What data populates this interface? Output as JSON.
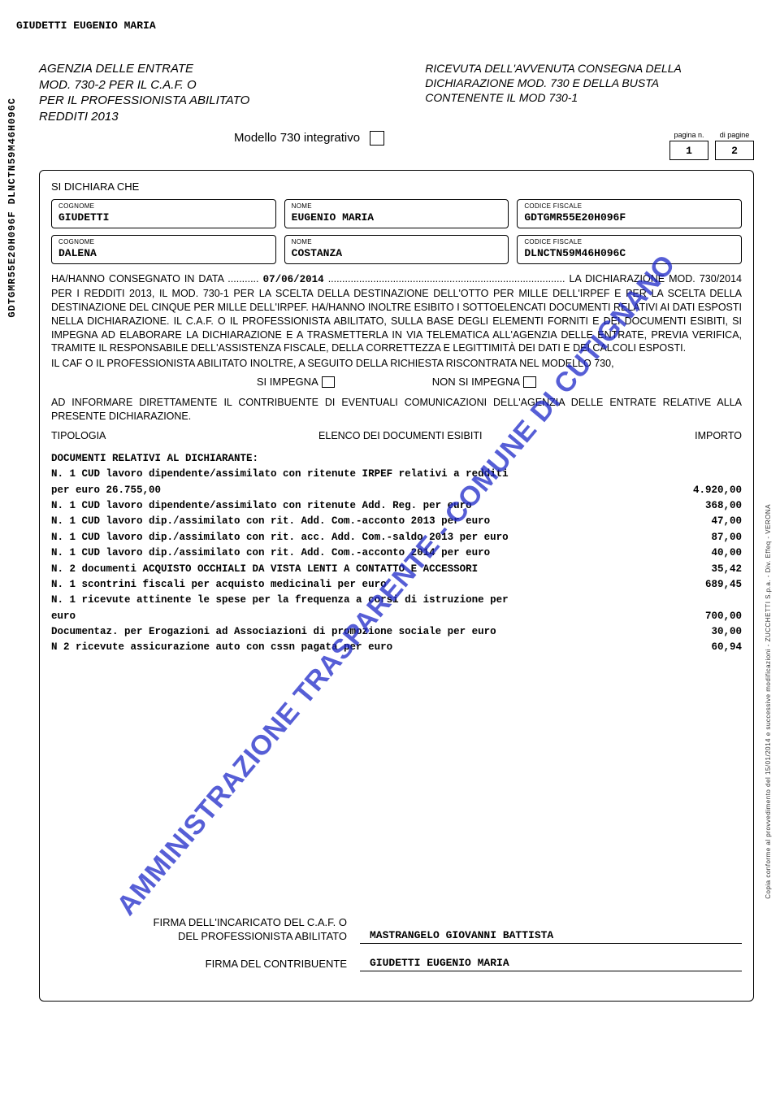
{
  "top_name": "GIUDETTI EUGENIO MARIA",
  "vertical_code": "GDTGMR55E20H096F  DLNCTN59M46H096C",
  "header_left_l1": "AGENZIA DELLE ENTRATE",
  "header_left_l2": "MOD. 730-2 PER IL C.A.F. O",
  "header_left_l3": "PER IL PROFESSIONISTA ABILITATO",
  "header_left_l4": "REDDITI 2013",
  "header_right_l1": "RICEVUTA DELL'AVVENUTA CONSEGNA DELLA",
  "header_right_l2": "DICHIARAZIONE MOD. 730 E DELLA BUSTA",
  "header_right_l3": "CONTENENTE IL MOD 730-1",
  "modello_label": "Modello 730 integrativo",
  "pagina_label": "pagina n.",
  "dipagine_label": "di pagine",
  "pagina_n": "1",
  "di_pagine": "2",
  "si_dichiara": "SI DICHIARA CHE",
  "label_cognome": "COGNOME",
  "label_nome": "NOME",
  "label_cf": "CODICE FISCALE",
  "p1": {
    "cognome": "GIUDETTI",
    "nome": "EUGENIO MARIA",
    "cf": "GDTGMR55E20H096F"
  },
  "p2": {
    "cognome": "DALENA",
    "nome": "COSTANZA",
    "cf": "DLNCTN59M46H096C"
  },
  "consegnato_pre": "HA/HANNO CONSEGNATO IN DATA ...........",
  "consegnato_date": "07/06/2014",
  "consegnato_post": ".................................................................................... LA DICHIARAZIONE MOD. 730/2014 PER I REDDITI 2013, IL MOD. 730-1 PER LA SCELTA DELLA DESTINAZIONE DELL'OTTO PER MILLE DELL'IRPEF E PER LA SCELTA DELLA DESTINAZIONE DEL CINQUE PER MILLE DELL'IRPEF. HA/HANNO INOLTRE ESIBITO I SOTTOELENCATI DOCUMENTI RELATIVI AI DATI ESPOSTI NELLA DICHIARAZIONE. IL C.A.F. O IL PROFESSIONISTA ABILITATO, SULLA BASE DEGLI ELEMENTI FORNITI E DEI DOCUMENTI ESIBITI, SI IMPEGNA AD ELABORARE LA DICHIARAZIONE E A TRASMETTERLA IN VIA TELEMATICA ALL'AGENZIA DELLE ENTRATE, PREVIA VERIFICA, TRAMITE IL RESPONSABILE DELL'ASSISTENZA FISCALE, DELLA CORRETTEZZA E LEGITTIMITÀ DEI DATI E DEI CALCOLI ESPOSTI.",
  "caf_line": "IL CAF O IL PROFESSIONISTA ABILITATO INOLTRE, A SEGUITO DELLA RICHIESTA RISCONTRATA NEL MODELLO 730,",
  "si_impegna": "SI IMPEGNA",
  "non_si_impegna": "NON SI IMPEGNA",
  "informare": "AD INFORMARE DIRETTAMENTE IL CONTRIBUENTE DI EVENTUALI COMUNICAZIONI DELL'AGENZIA DELLE ENTRATE RELATIVE ALLA PRESENTE DICHIARAZIONE.",
  "tipologia": "TIPOLOGIA",
  "elenco": "ELENCO DEI DOCUMENTI ESIBITI",
  "importo": "IMPORTO",
  "doc_header": "DOCUMENTI RELATIVI AL DICHIARANTE:",
  "docs": [
    {
      "desc": "N. 1 CUD lavoro dipendente/assimilato con ritenute IRPEF relativi a redditi",
      "amt": ""
    },
    {
      "desc": "per euro 26.755,00",
      "amt": "4.920,00"
    },
    {
      "desc": "N. 1 CUD lavoro dipendente/assimilato con ritenute Add. Reg. per euro",
      "amt": "368,00"
    },
    {
      "desc": "N. 1 CUD lavoro dip./assimilato con rit. Add. Com.-acconto 2013 per euro",
      "amt": "47,00"
    },
    {
      "desc": "N. 1 CUD lavoro dip./assimilato con rit. acc. Add. Com.-saldo 2013 per euro",
      "amt": "87,00"
    },
    {
      "desc": "N. 1 CUD lavoro dip./assimilato con rit. Add. Com.-acconto 2014 per euro",
      "amt": "40,00"
    },
    {
      "desc": "N. 2 documenti ACQUISTO OCCHIALI DA VISTA LENTI A CONTATTO E ACCESSORI",
      "amt": "35,42"
    },
    {
      "desc": "N. 1 scontrini fiscali per acquisto medicinali per euro",
      "amt": "689,45"
    },
    {
      "desc": "N. 1 ricevute attinente le spese per la frequenza a corsi di istruzione per",
      "amt": ""
    },
    {
      "desc": "euro",
      "amt": "700,00"
    },
    {
      "desc": "Documentaz. per Erogazioni ad Associazioni di promozione sociale per euro",
      "amt": "30,00"
    },
    {
      "desc": "N 2 ricevute assicurazione auto con cssn pagata per euro",
      "amt": "60,94"
    }
  ],
  "watermark": "AMMINISTRAZIONE TRASPARENTE - COMUNE DI CUTIGNANO",
  "side_right": "Copia conforme al provvedimento del 15/01/2014 e successive modificazioni - ZUCCHETTI S.p.a. - Div. Effeq - VERONA",
  "sig1_l1": "FIRMA DELL'INCARICATO DEL C.A.F. O",
  "sig1_l2": "DEL PROFESSIONISTA ABILITATO",
  "sig1_name": "MASTRANGELO GIOVANNI BATTISTA",
  "sig2_label": "FIRMA DEL CONTRIBUENTE",
  "sig2_name": "GIUDETTI EUGENIO MARIA"
}
